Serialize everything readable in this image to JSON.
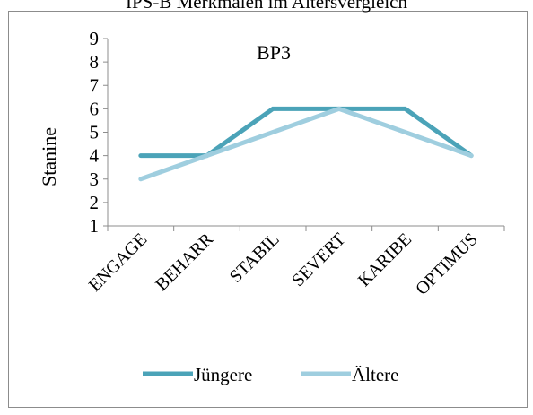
{
  "chart_data": {
    "type": "line",
    "title": "IPS-B Merkmalen im Altersvergleich",
    "subtitle": "BP3",
    "xlabel": "",
    "ylabel": "Stanine",
    "categories": [
      "ENGAGE",
      "BEHARR",
      "STABIL",
      "SEVERT",
      "KARIBE",
      "OPTIMUS"
    ],
    "ylim": [
      1,
      9
    ],
    "yticks": [
      "1",
      "2",
      "3",
      "4",
      "5",
      "6",
      "7",
      "8",
      "9"
    ],
    "grid": false,
    "legend_position": "bottom",
    "series": [
      {
        "name": "Jüngere",
        "values": [
          4,
          4,
          6,
          6,
          6,
          4
        ],
        "color": "#4BA3B8"
      },
      {
        "name": "Ältere",
        "values": [
          3,
          4,
          5,
          6,
          5,
          4
        ],
        "color": "#9FCEDF"
      }
    ]
  }
}
